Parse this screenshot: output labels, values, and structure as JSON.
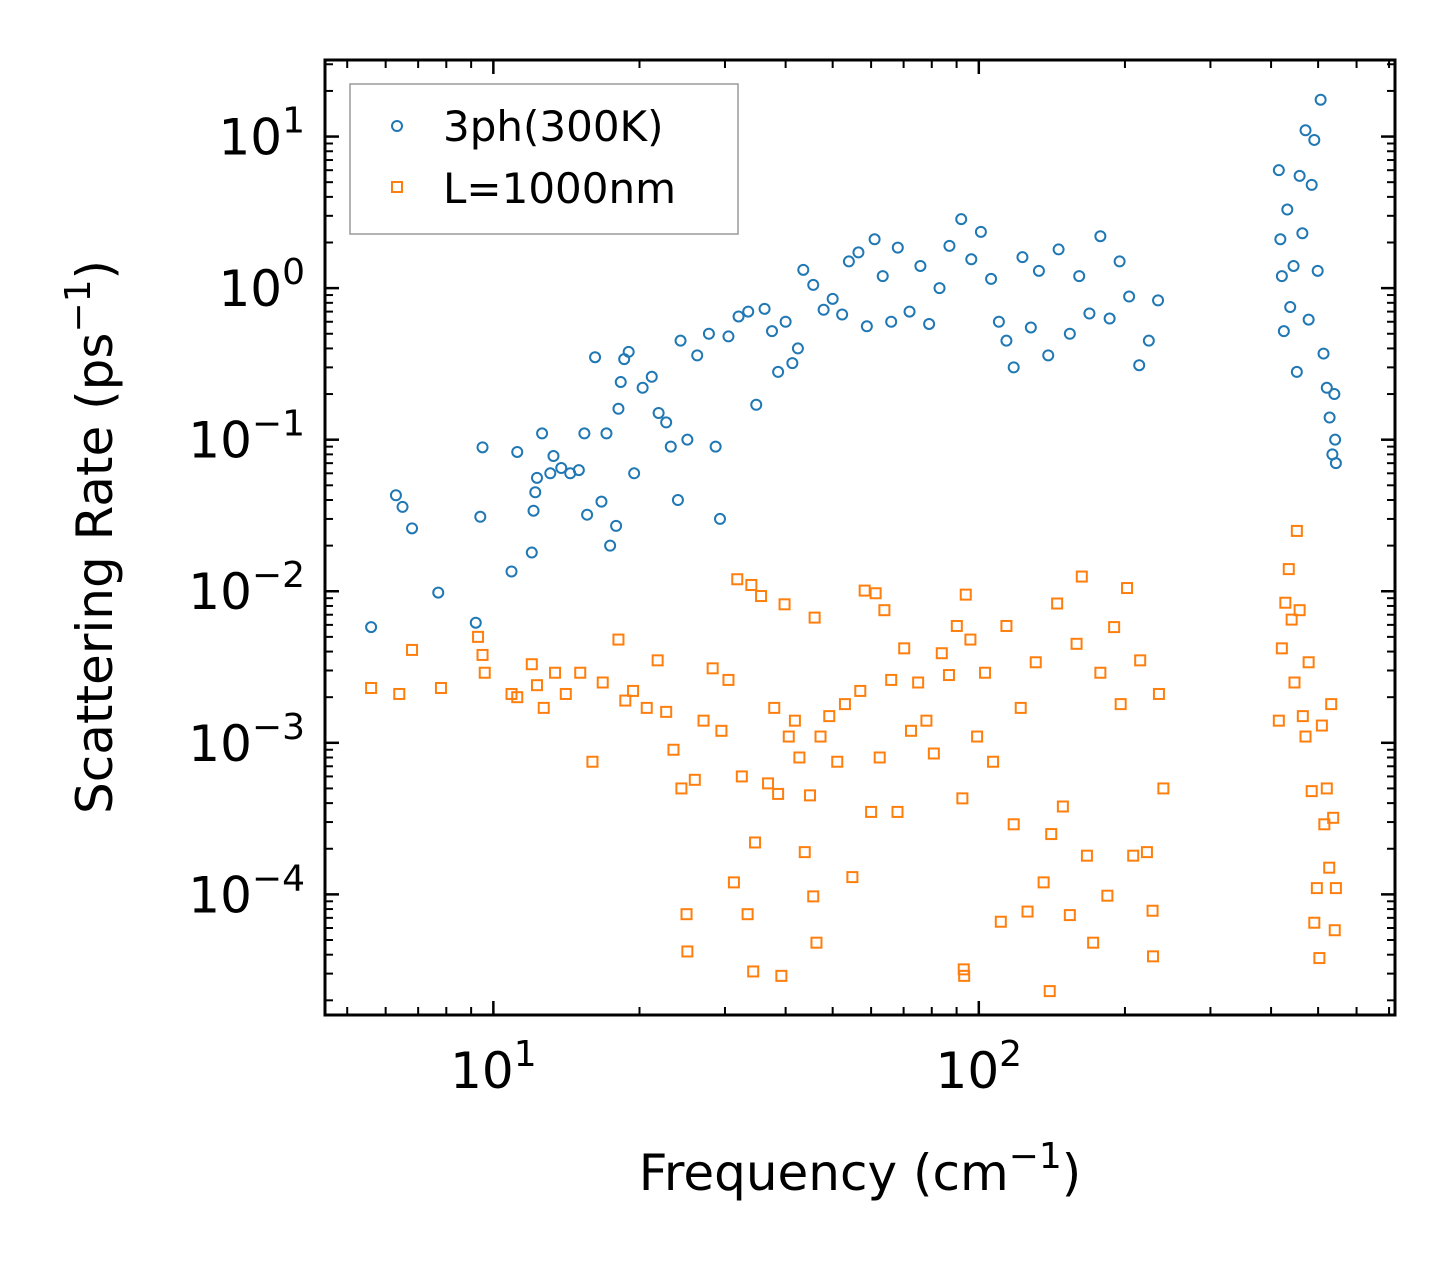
{
  "chart_data": {
    "type": "scatter",
    "xscale": "log",
    "yscale": "log",
    "xlim": [
      4.5,
      720
    ],
    "ylim": [
      1.6e-05,
      32
    ],
    "xlabel": {
      "main": "Frequency (cm",
      "sup": "−1",
      "end": ")"
    },
    "ylabel": {
      "main": "Scattering Rate (ps",
      "sup": "−1",
      "end": ")"
    },
    "x_ticks": [
      {
        "value": 10,
        "base": "10",
        "exp": "1"
      },
      {
        "value": 100,
        "base": "10",
        "exp": "2"
      }
    ],
    "y_ticks": [
      {
        "value": 10,
        "base": "10",
        "exp": "1"
      },
      {
        "value": 1,
        "base": "10",
        "exp": "0"
      },
      {
        "value": 0.1,
        "base": "10",
        "exp": "−1"
      },
      {
        "value": 0.01,
        "base": "10",
        "exp": "−2"
      },
      {
        "value": 0.001,
        "base": "10",
        "exp": "−3"
      },
      {
        "value": 0.0001,
        "base": "10",
        "exp": "−4"
      }
    ],
    "legend_position": "top-left",
    "series": [
      {
        "name": "3ph(300K)",
        "marker": "circle",
        "color": "#1f77b4",
        "points": [
          [
            5.6,
            0.0058
          ],
          [
            6.3,
            0.043
          ],
          [
            6.5,
            0.036
          ],
          [
            6.8,
            0.026
          ],
          [
            7.7,
            0.0098
          ],
          [
            9.2,
            0.0062
          ],
          [
            9.4,
            0.031
          ],
          [
            9.5,
            0.089
          ],
          [
            10.9,
            0.0135
          ],
          [
            11.2,
            0.083
          ],
          [
            12.0,
            0.018
          ],
          [
            12.1,
            0.034
          ],
          [
            12.2,
            0.045
          ],
          [
            12.3,
            0.056
          ],
          [
            12.6,
            0.11
          ],
          [
            13.1,
            0.06
          ],
          [
            13.3,
            0.078
          ],
          [
            13.8,
            0.065
          ],
          [
            14.4,
            0.06
          ],
          [
            15.0,
            0.063
          ],
          [
            15.4,
            0.11
          ],
          [
            15.6,
            0.032
          ],
          [
            16.2,
            0.35
          ],
          [
            16.7,
            0.039
          ],
          [
            17.1,
            0.11
          ],
          [
            17.4,
            0.02
          ],
          [
            17.9,
            0.027
          ],
          [
            18.1,
            0.16
          ],
          [
            18.3,
            0.24
          ],
          [
            18.6,
            0.34
          ],
          [
            19.0,
            0.38
          ],
          [
            19.5,
            0.06
          ],
          [
            20.3,
            0.22
          ],
          [
            21.2,
            0.26
          ],
          [
            21.9,
            0.15
          ],
          [
            22.7,
            0.13
          ],
          [
            23.2,
            0.09
          ],
          [
            24.0,
            0.04
          ],
          [
            24.3,
            0.45
          ],
          [
            25.1,
            0.1
          ],
          [
            26.3,
            0.36
          ],
          [
            27.8,
            0.5
          ],
          [
            28.7,
            0.09
          ],
          [
            29.3,
            0.03
          ],
          [
            30.5,
            0.48
          ],
          [
            32.0,
            0.65
          ],
          [
            33.5,
            0.7
          ],
          [
            34.8,
            0.17
          ],
          [
            36.2,
            0.73
          ],
          [
            37.5,
            0.52
          ],
          [
            38.6,
            0.28
          ],
          [
            40.0,
            0.6
          ],
          [
            41.3,
            0.32
          ],
          [
            42.4,
            0.4
          ],
          [
            43.5,
            1.32
          ],
          [
            45.6,
            1.05
          ],
          [
            47.9,
            0.72
          ],
          [
            50.0,
            0.85
          ],
          [
            52.3,
            0.67
          ],
          [
            54.0,
            1.5
          ],
          [
            56.5,
            1.72
          ],
          [
            58.8,
            0.56
          ],
          [
            61.0,
            2.1
          ],
          [
            63.4,
            1.2
          ],
          [
            66.0,
            0.6
          ],
          [
            68.1,
            1.85
          ],
          [
            72.0,
            0.7
          ],
          [
            75.8,
            1.4
          ],
          [
            79.0,
            0.58
          ],
          [
            83.0,
            1.0
          ],
          [
            87.0,
            1.9
          ],
          [
            92.0,
            2.85
          ],
          [
            96.5,
            1.55
          ],
          [
            101.0,
            2.35
          ],
          [
            106.0,
            1.15
          ],
          [
            110.0,
            0.6
          ],
          [
            114.0,
            0.45
          ],
          [
            118.0,
            0.3
          ],
          [
            123.0,
            1.6
          ],
          [
            128.0,
            0.55
          ],
          [
            133.0,
            1.3
          ],
          [
            139.0,
            0.36
          ],
          [
            146.0,
            1.8
          ],
          [
            154.0,
            0.5
          ],
          [
            161.0,
            1.2
          ],
          [
            169.0,
            0.68
          ],
          [
            178.0,
            2.2
          ],
          [
            186.0,
            0.63
          ],
          [
            195.0,
            1.5
          ],
          [
            204.0,
            0.88
          ],
          [
            214.0,
            0.31
          ],
          [
            224.0,
            0.45
          ],
          [
            234.0,
            0.83
          ],
          [
            415.0,
            6.0
          ],
          [
            418.0,
            2.1
          ],
          [
            421.0,
            1.2
          ],
          [
            425.0,
            0.52
          ],
          [
            432.0,
            3.3
          ],
          [
            438.0,
            0.75
          ],
          [
            445.0,
            1.4
          ],
          [
            452.0,
            0.28
          ],
          [
            458.0,
            5.5
          ],
          [
            464.0,
            2.3
          ],
          [
            471.0,
            11.0
          ],
          [
            478.0,
            0.62
          ],
          [
            485.0,
            4.8
          ],
          [
            491.0,
            9.5
          ],
          [
            499.0,
            1.3
          ],
          [
            506.0,
            17.5
          ],
          [
            513.0,
            0.37
          ],
          [
            521.0,
            0.22
          ],
          [
            528.0,
            0.14
          ],
          [
            535.0,
            0.08
          ],
          [
            540.0,
            0.2
          ],
          [
            542.0,
            0.1
          ],
          [
            544.0,
            0.07
          ]
        ]
      },
      {
        "name": "L=1000nm",
        "marker": "square",
        "color": "#ff7f0e",
        "points": [
          [
            5.6,
            0.0023
          ],
          [
            6.4,
            0.0021
          ],
          [
            6.8,
            0.0041
          ],
          [
            7.8,
            0.0023
          ],
          [
            9.3,
            0.005
          ],
          [
            9.5,
            0.0038
          ],
          [
            9.6,
            0.0029
          ],
          [
            10.9,
            0.0021
          ],
          [
            11.2,
            0.002
          ],
          [
            12.0,
            0.0033
          ],
          [
            12.3,
            0.0024
          ],
          [
            12.7,
            0.0017
          ],
          [
            13.4,
            0.0029
          ],
          [
            14.1,
            0.0021
          ],
          [
            15.1,
            0.0029
          ],
          [
            16.0,
            0.00075
          ],
          [
            16.8,
            0.0025
          ],
          [
            18.1,
            0.0048
          ],
          [
            18.7,
            0.0019
          ],
          [
            19.4,
            0.0022
          ],
          [
            20.7,
            0.0017
          ],
          [
            21.8,
            0.0035
          ],
          [
            22.7,
            0.0016
          ],
          [
            23.5,
            0.0009
          ],
          [
            24.4,
            0.0005
          ],
          [
            25.0,
            7.4e-05
          ],
          [
            25.1,
            4.2e-05
          ],
          [
            26.0,
            0.00057
          ],
          [
            27.1,
            0.0014
          ],
          [
            28.3,
            0.0031
          ],
          [
            29.5,
            0.0012
          ],
          [
            30.5,
            0.0026
          ],
          [
            31.3,
            0.00012
          ],
          [
            31.8,
            0.012
          ],
          [
            32.5,
            0.0006
          ],
          [
            33.4,
            7.4e-05
          ],
          [
            34.0,
            0.011
          ],
          [
            34.3,
            3.1e-05
          ],
          [
            34.6,
            0.00022
          ],
          [
            35.6,
            0.0093
          ],
          [
            36.8,
            0.00054
          ],
          [
            37.9,
            0.0017
          ],
          [
            38.6,
            0.00046
          ],
          [
            39.2,
            2.9e-05
          ],
          [
            39.8,
            0.0082
          ],
          [
            40.6,
            0.0011
          ],
          [
            41.8,
            0.0014
          ],
          [
            42.7,
            0.0008
          ],
          [
            43.8,
            0.00019
          ],
          [
            44.9,
            0.00045
          ],
          [
            45.6,
            9.7e-05
          ],
          [
            45.9,
            0.0067
          ],
          [
            46.3,
            4.8e-05
          ],
          [
            47.2,
            0.0011
          ],
          [
            49.2,
            0.0015
          ],
          [
            51.1,
            0.00075
          ],
          [
            53.0,
            0.0018
          ],
          [
            54.9,
            0.00013
          ],
          [
            57.0,
            0.0022
          ],
          [
            58.2,
            0.0101
          ],
          [
            60.0,
            0.00035
          ],
          [
            61.3,
            0.0097
          ],
          [
            62.5,
            0.0008
          ],
          [
            63.9,
            0.0075
          ],
          [
            66.0,
            0.0026
          ],
          [
            68.0,
            0.00035
          ],
          [
            70.2,
            0.0042
          ],
          [
            72.5,
            0.0012
          ],
          [
            75.0,
            0.0025
          ],
          [
            78.0,
            0.0014
          ],
          [
            80.8,
            0.00085
          ],
          [
            83.9,
            0.0039
          ],
          [
            86.8,
            0.0028
          ],
          [
            90.1,
            0.0059
          ],
          [
            92.5,
            0.00043
          ],
          [
            93.1,
            3.2e-05
          ],
          [
            93.3,
            2.9e-05
          ],
          [
            94.0,
            0.0095
          ],
          [
            96.1,
            0.0048
          ],
          [
            99.2,
            0.0011
          ],
          [
            103.0,
            0.0029
          ],
          [
            107.0,
            0.00075
          ],
          [
            111.0,
            6.6e-05
          ],
          [
            114.0,
            0.0059
          ],
          [
            118.0,
            0.00029
          ],
          [
            122.0,
            0.0017
          ],
          [
            126.0,
            7.7e-05
          ],
          [
            131.0,
            0.0034
          ],
          [
            136.0,
            0.00012
          ],
          [
            140.0,
            2.3e-05
          ],
          [
            141.0,
            0.00025
          ],
          [
            145.0,
            0.0083
          ],
          [
            149.0,
            0.00038
          ],
          [
            154.0,
            7.3e-05
          ],
          [
            159.0,
            0.0045
          ],
          [
            163.0,
            0.0125
          ],
          [
            167.0,
            0.00018
          ],
          [
            172.0,
            4.8e-05
          ],
          [
            178.0,
            0.0029
          ],
          [
            184.0,
            9.8e-05
          ],
          [
            190.0,
            0.0058
          ],
          [
            196.0,
            0.0018
          ],
          [
            202.0,
            0.0105
          ],
          [
            208.0,
            0.00018
          ],
          [
            215.0,
            0.0035
          ],
          [
            222.0,
            0.00019
          ],
          [
            228.0,
            7.8e-05
          ],
          [
            228.5,
            3.9e-05
          ],
          [
            235.0,
            0.0021
          ],
          [
            240.0,
            0.0005
          ],
          [
            415.0,
            0.0014
          ],
          [
            421.0,
            0.0042
          ],
          [
            428.0,
            0.0084
          ],
          [
            435.0,
            0.014
          ],
          [
            441.0,
            0.0065
          ],
          [
            447.0,
            0.0025
          ],
          [
            452.0,
            0.025
          ],
          [
            458.0,
            0.0075
          ],
          [
            465.0,
            0.0015
          ],
          [
            471.0,
            0.0011
          ],
          [
            478.0,
            0.0034
          ],
          [
            485.0,
            0.00048
          ],
          [
            491.0,
            6.5e-05
          ],
          [
            497.0,
            0.00011
          ],
          [
            503.0,
            3.8e-05
          ],
          [
            509.0,
            0.0013
          ],
          [
            515.0,
            0.00029
          ],
          [
            521.0,
            0.0005
          ],
          [
            527.0,
            0.00015
          ],
          [
            532.0,
            0.0018
          ],
          [
            537.0,
            0.00032
          ],
          [
            541.0,
            5.8e-05
          ],
          [
            544.0,
            0.00011
          ]
        ]
      }
    ]
  }
}
